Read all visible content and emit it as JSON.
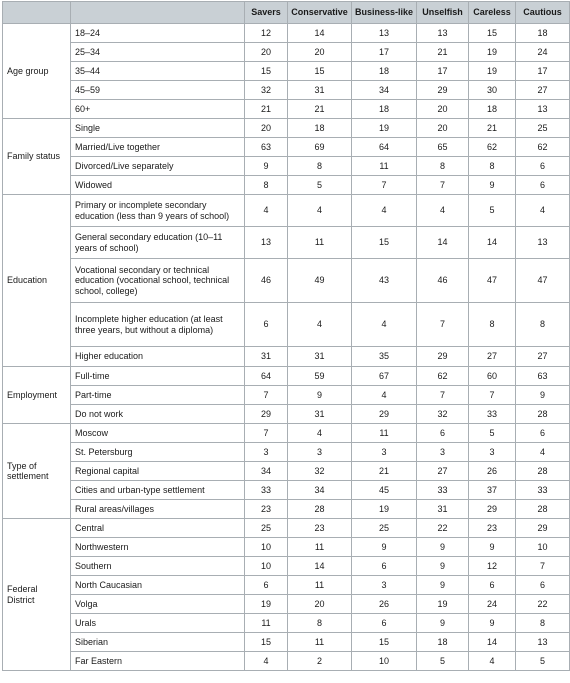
{
  "columns": [
    "Savers",
    "Conservative",
    "Business-like",
    "Unselfish",
    "Careless",
    "Cautious"
  ],
  "groups": [
    {
      "name": "Age group",
      "rows": [
        {
          "label": "18–24",
          "values": [
            "12",
            "14",
            "13",
            "13",
            "15",
            "18"
          ]
        },
        {
          "label": "25–34",
          "values": [
            "20",
            "20",
            "17",
            "21",
            "19",
            "24"
          ]
        },
        {
          "label": "35–44",
          "values": [
            "15",
            "15",
            "18",
            "17",
            "19",
            "17"
          ]
        },
        {
          "label": "45–59",
          "values": [
            "32",
            "31",
            "34",
            "29",
            "30",
            "27"
          ]
        },
        {
          "label": "60+",
          "values": [
            "21",
            "21",
            "18",
            "20",
            "18",
            "13"
          ]
        }
      ]
    },
    {
      "name": "Family status",
      "rows": [
        {
          "label": "Single",
          "values": [
            "20",
            "18",
            "19",
            "20",
            "21",
            "25"
          ]
        },
        {
          "label": "Married/Live together",
          "values": [
            "63",
            "69",
            "64",
            "65",
            "62",
            "62"
          ]
        },
        {
          "label": "Divorced/Live separately",
          "values": [
            "9",
            "8",
            "11",
            "8",
            "8",
            "6"
          ]
        },
        {
          "label": "Widowed",
          "values": [
            "8",
            "5",
            "7",
            "7",
            "9",
            "6"
          ]
        }
      ]
    },
    {
      "name": "Education",
      "rows": [
        {
          "label": "Primary or incomplete secondary education (less than 9 years of school)",
          "values": [
            "4",
            "4",
            "4",
            "4",
            "5",
            "4"
          ]
        },
        {
          "label": "General secondary education (10–11 years of school)",
          "values": [
            "13",
            "11",
            "15",
            "14",
            "14",
            "13"
          ]
        },
        {
          "label": "Vocational secondary or technical education (vocational school, technical school, college)",
          "values": [
            "46",
            "49",
            "43",
            "46",
            "47",
            "47"
          ]
        },
        {
          "label": "Incomplete higher education (at least three years, but without a diploma)",
          "values": [
            "6",
            "4",
            "4",
            "7",
            "8",
            "8"
          ]
        },
        {
          "label": "Higher education",
          "values": [
            "31",
            "31",
            "35",
            "29",
            "27",
            "27"
          ]
        }
      ]
    },
    {
      "name": "Employment",
      "rows": [
        {
          "label": "Full-time",
          "values": [
            "64",
            "59",
            "67",
            "62",
            "60",
            "63"
          ]
        },
        {
          "label": "Part-time",
          "values": [
            "7",
            "9",
            "4",
            "7",
            "7",
            "9"
          ]
        },
        {
          "label": "Do not work",
          "values": [
            "29",
            "31",
            "29",
            "32",
            "33",
            "28"
          ]
        }
      ]
    },
    {
      "name": "Type of settlement",
      "rows": [
        {
          "label": "Moscow",
          "values": [
            "7",
            "4",
            "11",
            "6",
            "5",
            "6"
          ]
        },
        {
          "label": "St. Petersburg",
          "values": [
            "3",
            "3",
            "3",
            "3",
            "3",
            "4"
          ]
        },
        {
          "label": "Regional capital",
          "values": [
            "34",
            "32",
            "21",
            "27",
            "26",
            "28"
          ]
        },
        {
          "label": "Cities and urban-type settlement",
          "values": [
            "33",
            "34",
            "45",
            "33",
            "37",
            "33"
          ]
        },
        {
          "label": "Rural areas/villages",
          "values": [
            "23",
            "28",
            "19",
            "31",
            "29",
            "28"
          ]
        }
      ]
    },
    {
      "name": "Federal District",
      "rows": [
        {
          "label": "Central",
          "values": [
            "25",
            "23",
            "25",
            "22",
            "23",
            "29"
          ]
        },
        {
          "label": "Northwestern",
          "values": [
            "10",
            "11",
            "9",
            "9",
            "9",
            "10"
          ]
        },
        {
          "label": "Southern",
          "values": [
            "10",
            "14",
            "6",
            "9",
            "12",
            "7"
          ]
        },
        {
          "label": "North Caucasian",
          "values": [
            "6",
            "11",
            "3",
            "9",
            "6",
            "6"
          ]
        },
        {
          "label": "Volga",
          "values": [
            "19",
            "20",
            "26",
            "19",
            "24",
            "22"
          ]
        },
        {
          "label": "Urals",
          "values": [
            "11",
            "8",
            "6",
            "9",
            "9",
            "8"
          ]
        },
        {
          "label": "Siberian",
          "values": [
            "15",
            "11",
            "15",
            "18",
            "14",
            "13"
          ]
        },
        {
          "label": "Far Eastern",
          "values": [
            "4",
            "2",
            "10",
            "5",
            "4",
            "5"
          ]
        }
      ]
    }
  ]
}
